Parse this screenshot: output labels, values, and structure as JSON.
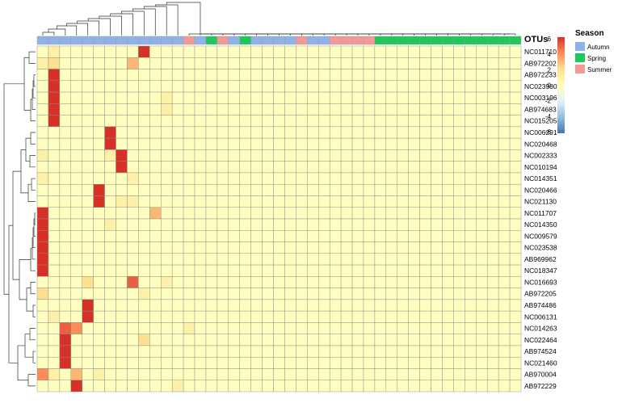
{
  "chart_data": {
    "type": "heatmap",
    "annotation_label": "OTUs",
    "rows": [
      "NC011710",
      "AB972202",
      "AB972233",
      "NC023980",
      "NC003196",
      "AB974683",
      "NC015205",
      "NC006291",
      "NC020468",
      "NC002333",
      "NC010194",
      "NC014351",
      "NC020466",
      "NC021130",
      "NC011707",
      "NC014350",
      "NC009579",
      "NC023538",
      "AB969962",
      "NC018347",
      "NC016693",
      "AB972205",
      "AB974486",
      "NC006131",
      "NC014263",
      "NC022464",
      "AB974524",
      "NC021460",
      "AB970004",
      "AB972229"
    ],
    "column_seasons": [
      "Autumn",
      "Autumn",
      "Autumn",
      "Autumn",
      "Autumn",
      "Autumn",
      "Autumn",
      "Autumn",
      "Autumn",
      "Autumn",
      "Autumn",
      "Autumn",
      "Autumn",
      "Summer",
      "Autumn",
      "Spring",
      "Summer",
      "Autumn",
      "Spring",
      "Autumn",
      "Autumn",
      "Autumn",
      "Autumn",
      "Summer",
      "Autumn",
      "Autumn",
      "Summer",
      "Summer",
      "Summer",
      "Summer",
      "Spring",
      "Spring",
      "Spring",
      "Spring",
      "Spring",
      "Spring",
      "Spring",
      "Spring",
      "Spring",
      "Spring",
      "Spring",
      "Spring",
      "Spring"
    ],
    "cell_values": [
      [
        0,
        1,
        0,
        0,
        0,
        0,
        0,
        0,
        0,
        6,
        0,
        0,
        0,
        0,
        0,
        0,
        0,
        0,
        0,
        0,
        0,
        0,
        0,
        0,
        0,
        0,
        0,
        0,
        0,
        0,
        0,
        0,
        0,
        0,
        0,
        0,
        0,
        0,
        0,
        0,
        0,
        0,
        0
      ],
      [
        1,
        2,
        0,
        0,
        0,
        0,
        0,
        0,
        3,
        0,
        0,
        0,
        0,
        0,
        0,
        0,
        0,
        0,
        0,
        0,
        0,
        0,
        0,
        0,
        0,
        0,
        0,
        0,
        0,
        0,
        0,
        0,
        0,
        0,
        0,
        0,
        0,
        0,
        0,
        0,
        0,
        0,
        0
      ],
      [
        0,
        6,
        0,
        0,
        0,
        0,
        0,
        0,
        0,
        0,
        0,
        0,
        0,
        0,
        0,
        0,
        0,
        0,
        0,
        0,
        0,
        0,
        0,
        0,
        0,
        0,
        0,
        0,
        0,
        0,
        0,
        0,
        0,
        0,
        0,
        0,
        0,
        0,
        0,
        0,
        0,
        0,
        0
      ],
      [
        0,
        6,
        0,
        0,
        0,
        0,
        0,
        0,
        0,
        0,
        0,
        0,
        0,
        0,
        0,
        0,
        0,
        0,
        0,
        0,
        0,
        0,
        0,
        0,
        0,
        0,
        0,
        0,
        0,
        0,
        0,
        0,
        0,
        0,
        0,
        0,
        0,
        0,
        0,
        0,
        0,
        0,
        0
      ],
      [
        0,
        6,
        0,
        0,
        0,
        0,
        0,
        0,
        0,
        0,
        0,
        1,
        0,
        0,
        0,
        0,
        0,
        0,
        0,
        0,
        0,
        0,
        0,
        0,
        0,
        0,
        0,
        0,
        0,
        0,
        0,
        0,
        0,
        0,
        0,
        0,
        0,
        0,
        0,
        0,
        0,
        0,
        0
      ],
      [
        0,
        6,
        0,
        0,
        0,
        0,
        0,
        0,
        0,
        0,
        0,
        1,
        0,
        0,
        0,
        0,
        0,
        0,
        0,
        0,
        0,
        0,
        0,
        0,
        0,
        0,
        0,
        0,
        0,
        0,
        0,
        0,
        0,
        0,
        0,
        0,
        0,
        0,
        0,
        0,
        0,
        0,
        0
      ],
      [
        0,
        6,
        0,
        0,
        0,
        0,
        0,
        0,
        0,
        0,
        0,
        0,
        0,
        0,
        0,
        0,
        0,
        0,
        0,
        0,
        0,
        0,
        0,
        0,
        0,
        0,
        0,
        0,
        0,
        0,
        0,
        0,
        0,
        0,
        0,
        0,
        0,
        0,
        0,
        0,
        0,
        0,
        0
      ],
      [
        0,
        0,
        0,
        0,
        0,
        0,
        6,
        0,
        0,
        0,
        0,
        0,
        0,
        0,
        0,
        0,
        0,
        0,
        0,
        0,
        0,
        0,
        0,
        0,
        0,
        0,
        0,
        0,
        0,
        0,
        0,
        0,
        0,
        0,
        0,
        0,
        0,
        0,
        0,
        0,
        0,
        0,
        0
      ],
      [
        0,
        0,
        0,
        0,
        0,
        0,
        6,
        0,
        0,
        0,
        0,
        0,
        0,
        0,
        0,
        0,
        0,
        0,
        0,
        0,
        0,
        0,
        0,
        0,
        0,
        0,
        0,
        0,
        0,
        0,
        0,
        0,
        0,
        0,
        0,
        0,
        0,
        0,
        0,
        0,
        0,
        0,
        0
      ],
      [
        1,
        0,
        0,
        0,
        0,
        0,
        1,
        6,
        0,
        0,
        0,
        0,
        0,
        0,
        0,
        0,
        0,
        0,
        0,
        0,
        0,
        0,
        0,
        0,
        0,
        0,
        0,
        0,
        0,
        0,
        0,
        0,
        0,
        0,
        0,
        0,
        0,
        0,
        0,
        0,
        0,
        0,
        0
      ],
      [
        0,
        0,
        0,
        0,
        0,
        0,
        0,
        6,
        0,
        0,
        0,
        0,
        0,
        0,
        0,
        0,
        0,
        0,
        0,
        0,
        0,
        0,
        0,
        0,
        0,
        0,
        0,
        0,
        0,
        0,
        0,
        0,
        0,
        0,
        0,
        0,
        0,
        0,
        0,
        0,
        0,
        0,
        0
      ],
      [
        1,
        0,
        0,
        0,
        0,
        0,
        0,
        0,
        1,
        0,
        0,
        0,
        0,
        0,
        0,
        0,
        0,
        0,
        0,
        0,
        0,
        0,
        0,
        0,
        0,
        0,
        0,
        0,
        0,
        0,
        0,
        0,
        0,
        0,
        0,
        0,
        0,
        0,
        0,
        0,
        0,
        0,
        0
      ],
      [
        0,
        0,
        0,
        0,
        0,
        6,
        0,
        0,
        0,
        0,
        0,
        0,
        0,
        0,
        0,
        0,
        0,
        0,
        0,
        0,
        0,
        0,
        0,
        0,
        0,
        0,
        0,
        0,
        0,
        0,
        0,
        0,
        0,
        0,
        0,
        0,
        0,
        0,
        0,
        0,
        0,
        0,
        0
      ],
      [
        0,
        0,
        0,
        0,
        0,
        6,
        0,
        1,
        1,
        0,
        0,
        0,
        0,
        0,
        0,
        0,
        0,
        0,
        0,
        0,
        0,
        0,
        0,
        0,
        0,
        0,
        0,
        0,
        0,
        0,
        0,
        0,
        0,
        0,
        0,
        0,
        0,
        0,
        0,
        0,
        0,
        0,
        0
      ],
      [
        6,
        0,
        0,
        0,
        0,
        0,
        0,
        0,
        0,
        0,
        3,
        0,
        0,
        0,
        0,
        0,
        0,
        0,
        0,
        0,
        0,
        0,
        0,
        0,
        0,
        0,
        0,
        0,
        0,
        0,
        0,
        0,
        0,
        0,
        0,
        0,
        0,
        0,
        0,
        0,
        0,
        0,
        0
      ],
      [
        6,
        0,
        0,
        0,
        0,
        0,
        1,
        0,
        0,
        0,
        0,
        0,
        0,
        0,
        0,
        0,
        0,
        0,
        0,
        0,
        0,
        0,
        0,
        0,
        0,
        0,
        0,
        0,
        0,
        0,
        0,
        0,
        0,
        0,
        0,
        0,
        0,
        0,
        0,
        0,
        0,
        0,
        0
      ],
      [
        6,
        0,
        0,
        0,
        0,
        0,
        0,
        0,
        0,
        0,
        0,
        0,
        0,
        0,
        0,
        0,
        0,
        0,
        0,
        0,
        0,
        0,
        0,
        0,
        0,
        0,
        0,
        0,
        0,
        0,
        0,
        0,
        0,
        0,
        0,
        0,
        0,
        0,
        0,
        0,
        0,
        0,
        0
      ],
      [
        6,
        0,
        0,
        0,
        0,
        0,
        0,
        0,
        0,
        0,
        0,
        0,
        0,
        0,
        0,
        0,
        0,
        0,
        0,
        0,
        0,
        0,
        0,
        0,
        0,
        0,
        0,
        0,
        0,
        0,
        0,
        0,
        0,
        0,
        0,
        0,
        0,
        0,
        0,
        0,
        0,
        0,
        0
      ],
      [
        6,
        0,
        0,
        0,
        0,
        0,
        0,
        0,
        0,
        0,
        0,
        0,
        0,
        0,
        0,
        0,
        0,
        0,
        0,
        0,
        0,
        0,
        0,
        0,
        0,
        0,
        0,
        0,
        0,
        0,
        0,
        0,
        0,
        0,
        0,
        0,
        0,
        0,
        0,
        0,
        0,
        0,
        0
      ],
      [
        6,
        0,
        0,
        0,
        0,
        0,
        0,
        0,
        0,
        0,
        0,
        0,
        0,
        0,
        0,
        0,
        0,
        0,
        0,
        0,
        0,
        0,
        0,
        0,
        0,
        0,
        0,
        0,
        0,
        0,
        0,
        0,
        0,
        0,
        0,
        0,
        0,
        0,
        0,
        0,
        0,
        0,
        0
      ],
      [
        0,
        0,
        0,
        0,
        2,
        0,
        0,
        0,
        5,
        0,
        0,
        1,
        0,
        0,
        0,
        0,
        0,
        0,
        0,
        0,
        0,
        0,
        0,
        0,
        0,
        0,
        0,
        0,
        0,
        0,
        0,
        0,
        0,
        0,
        0,
        0,
        0,
        0,
        0,
        0,
        0,
        0,
        0
      ],
      [
        2,
        0,
        0,
        0,
        0,
        0,
        0,
        0,
        0,
        1,
        0,
        0,
        0,
        0,
        0,
        0,
        0,
        0,
        0,
        0,
        0,
        0,
        0,
        0,
        0,
        0,
        0,
        0,
        0,
        0,
        0,
        0,
        0,
        0,
        0,
        0,
        0,
        0,
        0,
        0,
        0,
        0,
        0
      ],
      [
        0,
        0,
        0,
        0,
        6,
        0,
        0,
        0,
        0,
        0,
        0,
        0,
        0,
        0,
        0,
        0,
        0,
        0,
        0,
        0,
        0,
        0,
        0,
        0,
        0,
        0,
        0,
        0,
        0,
        0,
        0,
        0,
        0,
        0,
        0,
        0,
        0,
        0,
        0,
        0,
        0,
        0,
        0
      ],
      [
        0,
        1,
        0,
        0,
        6,
        0,
        0,
        0,
        0,
        0,
        0,
        0,
        0,
        0,
        0,
        0,
        0,
        0,
        0,
        0,
        0,
        0,
        0,
        0,
        0,
        0,
        0,
        0,
        0,
        0,
        0,
        0,
        0,
        0,
        0,
        0,
        0,
        0,
        0,
        0,
        0,
        0,
        0
      ],
      [
        0,
        0,
        5,
        4,
        0,
        0,
        0,
        0,
        0,
        0,
        0,
        0,
        0,
        1,
        0,
        0,
        0,
        0,
        0,
        0,
        0,
        0,
        0,
        0,
        0,
        0,
        0,
        0,
        0,
        0,
        0,
        0,
        0,
        0,
        0,
        0,
        0,
        0,
        0,
        0,
        0,
        0,
        0
      ],
      [
        0,
        0,
        6,
        0,
        0,
        0,
        0,
        0,
        0,
        2,
        0,
        0,
        0,
        0,
        0,
        0,
        0,
        0,
        0,
        0,
        0,
        0,
        0,
        0,
        0,
        0,
        0,
        0,
        0,
        0,
        0,
        0,
        0,
        0,
        0,
        0,
        0,
        0,
        0,
        0,
        0,
        0,
        0
      ],
      [
        0,
        0,
        6,
        0,
        0,
        0,
        0,
        0,
        0,
        0,
        0,
        0,
        0,
        0,
        0,
        0,
        0,
        0,
        0,
        0,
        0,
        0,
        0,
        0,
        0,
        0,
        0,
        0,
        0,
        0,
        0,
        0,
        0,
        0,
        0,
        0,
        0,
        0,
        0,
        0,
        0,
        0,
        0
      ],
      [
        0,
        0,
        6,
        0,
        0,
        0,
        0,
        0,
        0,
        0,
        0,
        0,
        0,
        0,
        0,
        0,
        0,
        0,
        0,
        0,
        0,
        0,
        0,
        0,
        0,
        0,
        0,
        0,
        0,
        0,
        0,
        0,
        0,
        0,
        0,
        0,
        0,
        0,
        0,
        0,
        0,
        0,
        0
      ],
      [
        4,
        1,
        0,
        3,
        0,
        1,
        0,
        0,
        0,
        0,
        0,
        0,
        0,
        0,
        0,
        0,
        0,
        0,
        0,
        0,
        0,
        0,
        0,
        0,
        0,
        0,
        0,
        0,
        0,
        0,
        0,
        0,
        0,
        0,
        0,
        0,
        0,
        0,
        0,
        0,
        0,
        0,
        0
      ],
      [
        0,
        0,
        0,
        6,
        0,
        0,
        0,
        0,
        0,
        0,
        0,
        0,
        1,
        0,
        0,
        0,
        0,
        0,
        0,
        0,
        0,
        0,
        0,
        0,
        0,
        0,
        0,
        0,
        0,
        0,
        0,
        0,
        0,
        0,
        0,
        0,
        0,
        0,
        0,
        0,
        0,
        0,
        0
      ]
    ],
    "colorbar": {
      "ticks": [
        "6",
        "4",
        "2",
        "0",
        "-2",
        "-4",
        "-6"
      ],
      "stops": [
        "#d73027",
        "#fc8d59",
        "#fee090",
        "#ffffbf",
        "#e0f3f8",
        "#91bfdb",
        "#4575b4"
      ]
    },
    "legend": {
      "title": "Season",
      "items": [
        {
          "label": "Autumn",
          "color": "#8db3e8"
        },
        {
          "label": "Spring",
          "color": "#1ec85a"
        },
        {
          "label": "Summer",
          "color": "#f39a97"
        }
      ]
    }
  }
}
